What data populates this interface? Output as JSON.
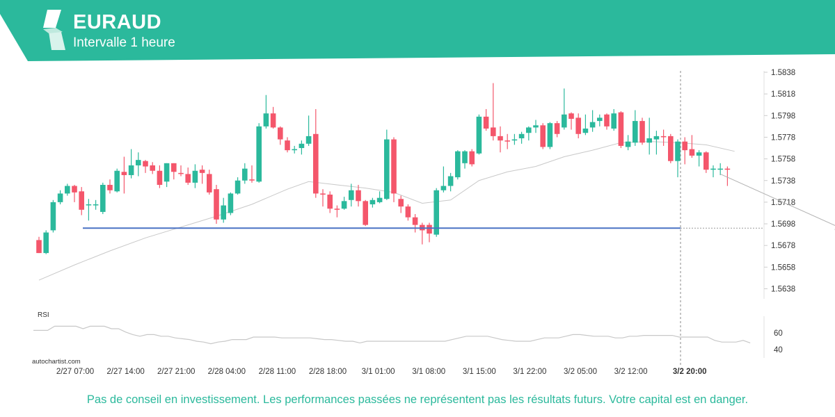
{
  "header": {
    "title": "EURAUD",
    "subtitle": "Intervalle 1 heure",
    "bg_color": "#2bb99c",
    "logo_icon": "autochartist-logo-icon"
  },
  "brand": "autochartist.com",
  "disclaimer": "Pas de conseil en investissement. Les performances passées ne représentent pas les résultats futurs. Votre capital est en danger.",
  "chart_data": {
    "type": "candlestick",
    "symbol": "EURAUD",
    "interval": "1 heure",
    "ylim": [
      1.5628,
      1.5844
    ],
    "y_ticks": [
      "1.5838",
      "1.5818",
      "1.5798",
      "1.5778",
      "1.5758",
      "1.5738",
      "1.5718",
      "1.5698",
      "1.5678",
      "1.5658",
      "1.5638"
    ],
    "x_ticks": [
      "2/27 07:00",
      "2/27 14:00",
      "2/27 21:00",
      "2/28 04:00",
      "2/28 11:00",
      "2/28 18:00",
      "3/1 01:00",
      "3/1 08:00",
      "3/1 15:00",
      "3/1 22:00",
      "3/2 05:00",
      "3/2 12:00",
      "3/2 20:00"
    ],
    "highlight_x_tick": "3/2 20:00",
    "up_color": "#2bb99c",
    "down_color": "#f4566b",
    "support_level": 1.5694,
    "support_color": "#4a72c4",
    "candles": [
      [
        1.5683,
        1.5671,
        1.5686,
        1.5671
      ],
      [
        1.5671,
        1.569,
        1.5692,
        1.567
      ],
      [
        1.5692,
        1.5718,
        1.572,
        1.569
      ],
      [
        1.5718,
        1.5726,
        1.5729,
        1.5716
      ],
      [
        1.5726,
        1.5733,
        1.5735,
        1.5724
      ],
      [
        1.5733,
        1.5727,
        1.5734,
        1.5718
      ],
      [
        1.5728,
        1.5711,
        1.5732,
        1.5706
      ],
      [
        1.5716,
        1.5716,
        1.5721,
        1.5701
      ],
      [
        1.5716,
        1.5716,
        1.572,
        1.5711
      ],
      [
        1.5709,
        1.5734,
        1.5736,
        1.5707
      ],
      [
        1.5734,
        1.5729,
        1.5739,
        1.5726
      ],
      [
        1.5728,
        1.5747,
        1.5749,
        1.5727
      ],
      [
        1.5746,
        1.5743,
        1.576,
        1.5726
      ],
      [
        1.5743,
        1.5752,
        1.5767,
        1.574
      ],
      [
        1.5752,
        1.5757,
        1.5764,
        1.5742
      ],
      [
        1.5756,
        1.5751,
        1.5757,
        1.5745
      ],
      [
        1.5752,
        1.5747,
        1.5755,
        1.5744
      ],
      [
        1.5747,
        1.5734,
        1.5752,
        1.5731
      ],
      [
        1.5737,
        1.5754,
        1.5754,
        1.5732
      ],
      [
        1.5754,
        1.5746,
        1.5754,
        1.5739
      ],
      [
        1.5745,
        1.5744,
        1.5752,
        1.5742
      ],
      [
        1.5744,
        1.5736,
        1.575,
        1.5734
      ],
      [
        1.5736,
        1.5747,
        1.5753,
        1.5731
      ],
      [
        1.5748,
        1.5745,
        1.5752,
        1.5735
      ],
      [
        1.5744,
        1.5727,
        1.5748,
        1.5725
      ],
      [
        1.573,
        1.5702,
        1.5734,
        1.5698
      ],
      [
        1.5702,
        1.5715,
        1.5722,
        1.5699
      ],
      [
        1.5708,
        1.5726,
        1.5727,
        1.5706
      ],
      [
        1.5726,
        1.5738,
        1.5741,
        1.5725
      ],
      [
        1.5738,
        1.5749,
        1.5754,
        1.5735
      ],
      [
        1.5739,
        1.5738,
        1.5752,
        1.5736
      ],
      [
        1.5737,
        1.5788,
        1.5791,
        1.5736
      ],
      [
        1.5788,
        1.58,
        1.5817,
        1.5786
      ],
      [
        1.58,
        1.5787,
        1.5806,
        1.5786
      ],
      [
        1.5787,
        1.5776,
        1.5788,
        1.5771
      ],
      [
        1.5775,
        1.5766,
        1.5778,
        1.5764
      ],
      [
        1.5766,
        1.5767,
        1.577,
        1.5763
      ],
      [
        1.5768,
        1.5772,
        1.5775,
        1.5762
      ],
      [
        1.5772,
        1.5779,
        1.5798,
        1.577
      ],
      [
        1.5781,
        1.5726,
        1.5804,
        1.5722
      ],
      [
        1.5726,
        1.5725,
        1.573,
        1.5714
      ],
      [
        1.5725,
        1.5712,
        1.5728,
        1.5708
      ],
      [
        1.5712,
        1.5711,
        1.5715,
        1.5704
      ],
      [
        1.5712,
        1.5719,
        1.5723,
        1.5711
      ],
      [
        1.572,
        1.5729,
        1.5735,
        1.5714
      ],
      [
        1.5729,
        1.5719,
        1.5734,
        1.5714
      ],
      [
        1.5719,
        1.5697,
        1.572,
        1.5696
      ],
      [
        1.5716,
        1.572,
        1.5722,
        1.5713
      ],
      [
        1.5718,
        1.5722,
        1.5728,
        1.5717
      ],
      [
        1.5721,
        1.5776,
        1.5785,
        1.572
      ],
      [
        1.5776,
        1.5726,
        1.5778,
        1.5718
      ],
      [
        1.5721,
        1.5714,
        1.5724,
        1.5708
      ],
      [
        1.5714,
        1.5704,
        1.5716,
        1.5701
      ],
      [
        1.5704,
        1.5697,
        1.5707,
        1.569
      ],
      [
        1.5697,
        1.5692,
        1.5699,
        1.5679
      ],
      [
        1.5697,
        1.5689,
        1.5699,
        1.5681
      ],
      [
        1.5688,
        1.5729,
        1.5731,
        1.5686
      ],
      [
        1.5729,
        1.5733,
        1.5751,
        1.5727
      ],
      [
        1.5733,
        1.5742,
        1.5745,
        1.5728
      ],
      [
        1.5741,
        1.5765,
        1.5766,
        1.5739
      ],
      [
        1.5754,
        1.5765,
        1.5766,
        1.5749
      ],
      [
        1.5765,
        1.5753,
        1.5767,
        1.5751
      ],
      [
        1.5763,
        1.5797,
        1.5799,
        1.5762
      ],
      [
        1.5797,
        1.5786,
        1.5804,
        1.5784
      ],
      [
        1.5787,
        1.5779,
        1.5828,
        1.5775
      ],
      [
        1.5779,
        1.5775,
        1.5788,
        1.5764
      ],
      [
        1.5775,
        1.5774,
        1.5781,
        1.5767
      ],
      [
        1.5775,
        1.5776,
        1.5781,
        1.5771
      ],
      [
        1.5777,
        1.5781,
        1.5783,
        1.5772
      ],
      [
        1.5782,
        1.5787,
        1.5788,
        1.5775
      ],
      [
        1.5787,
        1.5789,
        1.5794,
        1.5782
      ],
      [
        1.5789,
        1.5769,
        1.5791,
        1.5767
      ],
      [
        1.5769,
        1.5791,
        1.5792,
        1.5767
      ],
      [
        1.5791,
        1.5781,
        1.5793,
        1.5778
      ],
      [
        1.5787,
        1.5799,
        1.5823,
        1.5785
      ],
      [
        1.58,
        1.5795,
        1.5801,
        1.5785
      ],
      [
        1.5796,
        1.5781,
        1.58,
        1.5777
      ],
      [
        1.5782,
        1.5786,
        1.5799,
        1.578
      ],
      [
        1.5787,
        1.5792,
        1.5803,
        1.5783
      ],
      [
        1.5793,
        1.5796,
        1.5799,
        1.5788
      ],
      [
        1.5799,
        1.5788,
        1.58,
        1.5785
      ],
      [
        1.5786,
        1.58,
        1.5804,
        1.5784
      ],
      [
        1.5801,
        1.577,
        1.5802,
        1.5768
      ],
      [
        1.5769,
        1.5774,
        1.578,
        1.5766
      ],
      [
        1.5773,
        1.5793,
        1.5803,
        1.577
      ],
      [
        1.5793,
        1.5773,
        1.5796,
        1.5771
      ],
      [
        1.5773,
        1.5777,
        1.5796,
        1.5762
      ],
      [
        1.5776,
        1.5779,
        1.5784,
        1.5762
      ],
      [
        1.5779,
        1.5778,
        1.5785,
        1.577
      ],
      [
        1.5779,
        1.5756,
        1.5781,
        1.5754
      ],
      [
        1.5756,
        1.5774,
        1.5776,
        1.5741
      ],
      [
        1.5774,
        1.5766,
        1.5778,
        1.5753
      ],
      [
        1.5767,
        1.5761,
        1.578,
        1.5759
      ],
      [
        1.5761,
        1.5764,
        1.5766,
        1.5751
      ],
      [
        1.5764,
        1.5748,
        1.5765,
        1.5745
      ],
      [
        1.5748,
        1.5749,
        1.5752,
        1.5741
      ],
      [
        1.5748,
        1.5749,
        1.5754,
        1.5743
      ],
      [
        1.5749,
        1.5748,
        1.5751,
        1.5733
      ]
    ],
    "moving_average": [
      [
        0,
        1.5646
      ],
      [
        5,
        1.566
      ],
      [
        10,
        1.5673
      ],
      [
        15,
        1.5685
      ],
      [
        20,
        1.5695
      ],
      [
        25,
        1.5705
      ],
      [
        30,
        1.5716
      ],
      [
        35,
        1.573
      ],
      [
        38,
        1.5737
      ],
      [
        42,
        1.5734
      ],
      [
        46,
        1.5731
      ],
      [
        50,
        1.5727
      ],
      [
        54,
        1.5717
      ],
      [
        58,
        1.572
      ],
      [
        62,
        1.5738
      ],
      [
        66,
        1.5746
      ],
      [
        70,
        1.5751
      ],
      [
        74,
        1.576
      ],
      [
        78,
        1.5766
      ],
      [
        82,
        1.5773
      ],
      [
        86,
        1.5774
      ],
      [
        90,
        1.5773
      ],
      [
        94,
        1.5771
      ],
      [
        98,
        1.5765
      ]
    ],
    "forecast": {
      "from": [
        96,
        1.5744
      ],
      "to": [
        113,
        1.5694
      ]
    },
    "rsi": {
      "label": "RSI",
      "ylim": [
        30,
        80
      ],
      "ticks": [
        "60",
        "40"
      ],
      "values": [
        63,
        63,
        63,
        68,
        68,
        68,
        68,
        65,
        68,
        68,
        68,
        65,
        65,
        61,
        58,
        56,
        58,
        58,
        56,
        56,
        54,
        53,
        52,
        50,
        49,
        47,
        49,
        50,
        52,
        52,
        52,
        55,
        55,
        55,
        55,
        54,
        54,
        54,
        54,
        54,
        53,
        52,
        52,
        51,
        50,
        50,
        48,
        50,
        50,
        50,
        50,
        50,
        50,
        50,
        50,
        50,
        50,
        50,
        50,
        52,
        54,
        56,
        56,
        56,
        56,
        54,
        52,
        51,
        50,
        50,
        50,
        52,
        54,
        54,
        54,
        56,
        58,
        58,
        57,
        56,
        56,
        56,
        54,
        54,
        56,
        56,
        57,
        57,
        57,
        57,
        57,
        55,
        55,
        55,
        55,
        55,
        51,
        49,
        49,
        49,
        51,
        48
      ]
    }
  }
}
